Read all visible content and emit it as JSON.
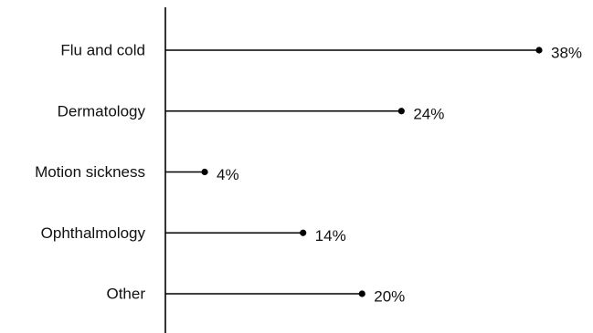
{
  "chart_data": {
    "type": "lollipop",
    "orientation": "horizontal",
    "categories": [
      "Flu and cold",
      "Dermatology",
      "Motion sickness",
      "Ophthalmology",
      "Other"
    ],
    "values": [
      38,
      24,
      4,
      14,
      20
    ],
    "value_labels": [
      "38%",
      "24%",
      "4%",
      "14%",
      "20%"
    ],
    "unit": "%",
    "xlim": [
      0,
      40
    ],
    "grid": false,
    "legend": "none",
    "colors": {
      "line": "#000000",
      "text": "#111111",
      "background": "#ffffff"
    }
  }
}
